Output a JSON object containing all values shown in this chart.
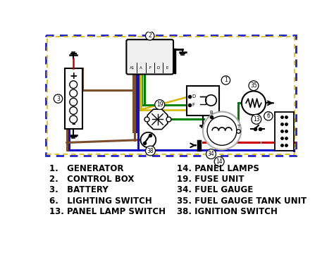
{
  "bg_color": "#ffffff",
  "legend_items_left": [
    [
      "1.",
      "   GENERATOR"
    ],
    [
      "2.",
      "   CONTROL BOX"
    ],
    [
      "3.",
      "   BATTERY"
    ],
    [
      "6.",
      "   LIGHTING SWITCH"
    ],
    [
      "13.",
      " PANEL LAMP SWITCH"
    ]
  ],
  "legend_items_right": [
    [
      "14.",
      " PANEL LAMPS"
    ],
    [
      "19.",
      " FUSE UNIT"
    ],
    [
      "34.",
      " FUEL GAUGE"
    ],
    [
      "35.",
      " FUEL GAUGE TANK UNIT"
    ],
    [
      "38.",
      " IGNITION SWITCH"
    ]
  ],
  "wc_brown": "#7B4F2E",
  "wc_blue": "#1010CC",
  "wc_yellow": "#D4B800",
  "wc_green": "#008000",
  "wc_red": "#CC0000",
  "wc_black": "#000000",
  "wc_gray": "#999999",
  "wc_dark_blue": "#000099",
  "border_blue": "#2222CC",
  "border_yellow": "#DDBB00"
}
